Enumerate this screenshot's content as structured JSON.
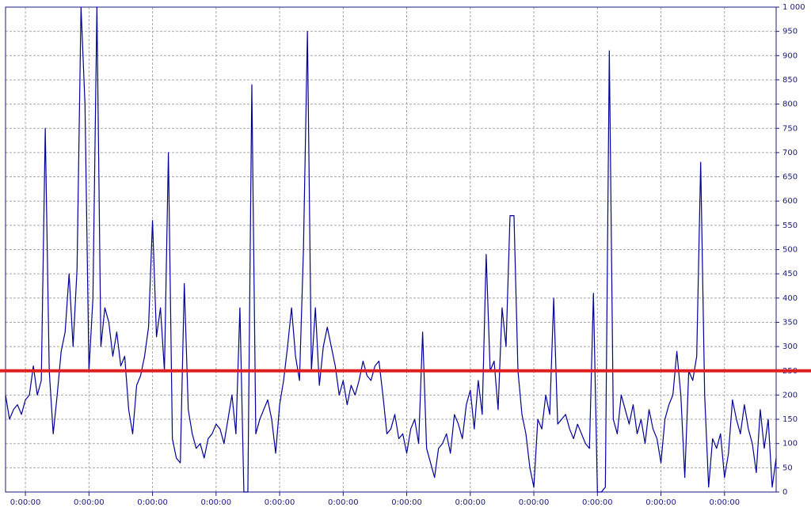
{
  "chart_data": {
    "type": "line",
    "xlim": [
      0,
      194
    ],
    "xticks": [
      {
        "value": 5,
        "label": "0:00:00"
      },
      {
        "value": 21,
        "label": "0:00:00"
      },
      {
        "value": 37,
        "label": "0:00:00"
      },
      {
        "value": 53,
        "label": "0:00:00"
      },
      {
        "value": 69,
        "label": "0:00:00"
      },
      {
        "value": 85,
        "label": "0:00:00"
      },
      {
        "value": 101,
        "label": "0:00:00"
      },
      {
        "value": 117,
        "label": "0:00:00"
      },
      {
        "value": 133,
        "label": "0:00:00"
      },
      {
        "value": 149,
        "label": "0:00:00"
      },
      {
        "value": 165,
        "label": "0:00:00"
      },
      {
        "value": 181,
        "label": "0:00:00"
      }
    ],
    "ylim": [
      0,
      1000
    ],
    "yticks": [
      0,
      50,
      100,
      150,
      200,
      250,
      300,
      350,
      400,
      450,
      500,
      550,
      600,
      650,
      700,
      750,
      800,
      850,
      900,
      950,
      {
        "value": 1000,
        "label": "1 000"
      }
    ],
    "grid": true,
    "threshold": {
      "value": 250,
      "color": "#e02020"
    },
    "series": [
      {
        "color": "#000099",
        "values": [
          200,
          150,
          170,
          180,
          160,
          190,
          200,
          260,
          200,
          230,
          750,
          250,
          120,
          200,
          290,
          330,
          450,
          300,
          460,
          1000,
          800,
          250,
          400,
          1000,
          300,
          380,
          350,
          280,
          330,
          260,
          280,
          170,
          120,
          220,
          240,
          280,
          340,
          560,
          320,
          380,
          250,
          700,
          110,
          70,
          60,
          430,
          170,
          120,
          90,
          100,
          70,
          110,
          120,
          140,
          130,
          100,
          150,
          200,
          120,
          380,
          0,
          0,
          840,
          120,
          150,
          170,
          190,
          150,
          80,
          180,
          230,
          300,
          380,
          280,
          230,
          500,
          950,
          250,
          380,
          220,
          300,
          340,
          300,
          260,
          200,
          230,
          180,
          220,
          200,
          230,
          270,
          240,
          230,
          260,
          270,
          200,
          120,
          130,
          160,
          110,
          120,
          80,
          130,
          150,
          100,
          330,
          90,
          60,
          30,
          90,
          100,
          120,
          80,
          160,
          140,
          110,
          180,
          210,
          130,
          230,
          160,
          490,
          250,
          270,
          170,
          380,
          300,
          570,
          570,
          250,
          160,
          120,
          50,
          10,
          150,
          130,
          200,
          160,
          400,
          140,
          150,
          160,
          130,
          110,
          140,
          120,
          100,
          90,
          410,
          0,
          0,
          10,
          910,
          150,
          120,
          200,
          170,
          140,
          180,
          120,
          150,
          100,
          170,
          130,
          110,
          60,
          150,
          180,
          200,
          290,
          200,
          30,
          250,
          230,
          280,
          680,
          200,
          10,
          110,
          90,
          120,
          30,
          80,
          190,
          150,
          120,
          180,
          130,
          100,
          40,
          170,
          90,
          150,
          10,
          70
        ]
      }
    ]
  }
}
